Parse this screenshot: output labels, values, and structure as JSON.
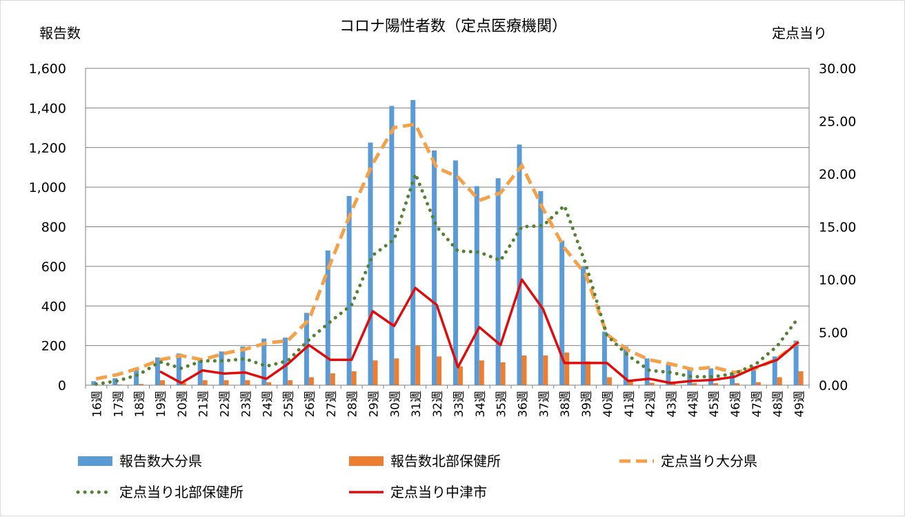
{
  "colors": {
    "bar_oita": "#5B9BD5",
    "bar_north": "#ED7D31",
    "line_oita": "#F4A14A",
    "line_north": "#548235",
    "line_nakatsu": "#E00B0B",
    "grid": "#7f7f7f"
  },
  "chart_data": {
    "type": "bar",
    "title": "コロナ陽性者数（定点医療機関）",
    "ylabel_left": "報告数",
    "ylabel_right": "定点当り",
    "xlabel": "",
    "ylim_left": [
      0,
      1600
    ],
    "ylim_right": [
      0,
      30
    ],
    "yticks_left": [
      "0",
      "200",
      "400",
      "600",
      "800",
      "1,000",
      "1,200",
      "1,400",
      "1,600"
    ],
    "yticks_right": [
      "0.00",
      "5.00",
      "10.00",
      "15.00",
      "20.00",
      "25.00",
      "30.00"
    ],
    "grid": true,
    "legend_position": "bottom",
    "categories": [
      "16週",
      "17週",
      "18週",
      "19週",
      "20週",
      "21週",
      "22週",
      "23週",
      "24週",
      "25週",
      "26週",
      "27週",
      "28週",
      "29週",
      "30週",
      "31週",
      "32週",
      "33週",
      "34週",
      "35週",
      "36週",
      "37週",
      "38週",
      "39週",
      "40週",
      "41週",
      "42週",
      "43週",
      "44週",
      "45週",
      "46週",
      "47週",
      "48週",
      "49週"
    ],
    "series": [
      {
        "name": "報告数大分県",
        "type": "bar",
        "axis": "left",
        "values": [
          20,
          35,
          75,
          140,
          160,
          135,
          170,
          195,
          235,
          240,
          365,
          680,
          955,
          1225,
          1410,
          1440,
          1185,
          1135,
          1005,
          1045,
          1215,
          980,
          730,
          600,
          270,
          195,
          135,
          110,
          80,
          85,
          65,
          95,
          145,
          225
        ]
      },
      {
        "name": "報告数北部保健所",
        "type": "bar",
        "axis": "left",
        "values": [
          2,
          3,
          6,
          25,
          12,
          25,
          25,
          25,
          15,
          25,
          40,
          60,
          70,
          125,
          135,
          200,
          145,
          95,
          125,
          115,
          150,
          150,
          165,
          120,
          40,
          20,
          12,
          8,
          10,
          10,
          10,
          15,
          40,
          70
        ]
      },
      {
        "name": "定点当り大分県",
        "type": "line",
        "style": "dashed",
        "axis": "right",
        "values": [
          0.6,
          1.0,
          1.6,
          2.4,
          2.8,
          2.4,
          3.0,
          3.4,
          4.0,
          4.2,
          6.2,
          11.5,
          16.5,
          21.0,
          24.4,
          24.7,
          20.6,
          19.7,
          17.5,
          18.2,
          20.8,
          16.7,
          13.0,
          10.5,
          4.8,
          3.3,
          2.4,
          2.0,
          1.5,
          1.7,
          1.2,
          1.6,
          2.5,
          4.1
        ]
      },
      {
        "name": "定点当り北部保健所",
        "type": "line",
        "style": "dotted",
        "axis": "right",
        "values": [
          0.1,
          0.4,
          1.0,
          2.2,
          1.6,
          2.3,
          2.3,
          2.5,
          1.8,
          2.3,
          4.3,
          6.0,
          7.6,
          12.3,
          13.8,
          20.0,
          15.0,
          12.7,
          12.6,
          11.8,
          15.0,
          15.1,
          17.0,
          11.5,
          4.7,
          2.8,
          1.4,
          1.2,
          0.8,
          0.8,
          1.1,
          2.0,
          3.7,
          6.4
        ]
      },
      {
        "name": "定点当り中津市",
        "type": "line",
        "style": "solid",
        "axis": "right",
        "values": [
          null,
          null,
          null,
          1.3,
          0.2,
          1.4,
          1.1,
          1.2,
          0.6,
          2.0,
          3.8,
          2.4,
          2.4,
          7.0,
          5.6,
          9.2,
          7.6,
          1.7,
          5.5,
          3.8,
          10.0,
          7.2,
          2.1,
          2.1,
          2.1,
          0.4,
          0.6,
          0.2,
          0.4,
          0.5,
          0.8,
          1.7,
          2.4,
          4.1
        ]
      }
    ]
  }
}
